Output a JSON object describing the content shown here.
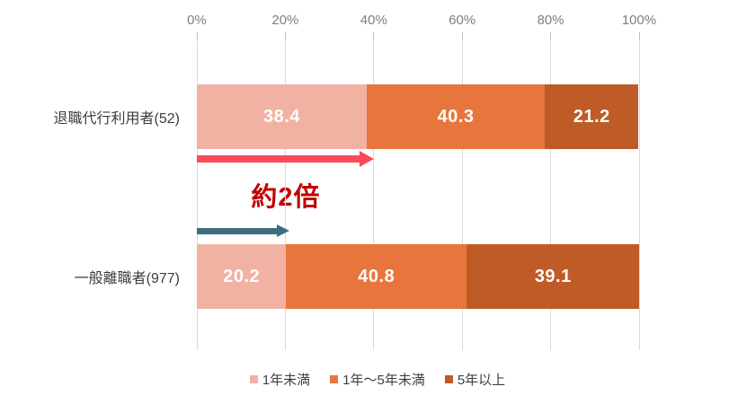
{
  "chart_data": {
    "type": "bar",
    "stacked": true,
    "orientation": "horizontal",
    "categories": [
      "退職代行利用者(52)",
      "一般離職者(977)"
    ],
    "series": [
      {
        "name": "1年未満",
        "color": "#f1b1a3",
        "values": [
          38.4,
          20.2
        ]
      },
      {
        "name": "1年〜5年未満",
        "color": "#e8763c",
        "values": [
          40.3,
          40.8
        ]
      },
      {
        "name": "5年以上",
        "color": "#bf5b27",
        "values": [
          21.2,
          39.1
        ]
      }
    ],
    "x_axis": {
      "min": 0,
      "max": 100,
      "ticks": [
        "0%",
        "20%",
        "40%",
        "60%",
        "80%",
        "100%"
      ],
      "grid": true
    },
    "legend_position": "bottom",
    "annotation": {
      "text": "約2倍",
      "color": "#c00000",
      "arrows": [
        {
          "name": "comparison-arrow-top",
          "color": "#fb4b57",
          "to_percent": 40
        },
        {
          "name": "comparison-arrow-bottom",
          "color": "#3e6c80",
          "to_percent": 21
        }
      ]
    }
  }
}
